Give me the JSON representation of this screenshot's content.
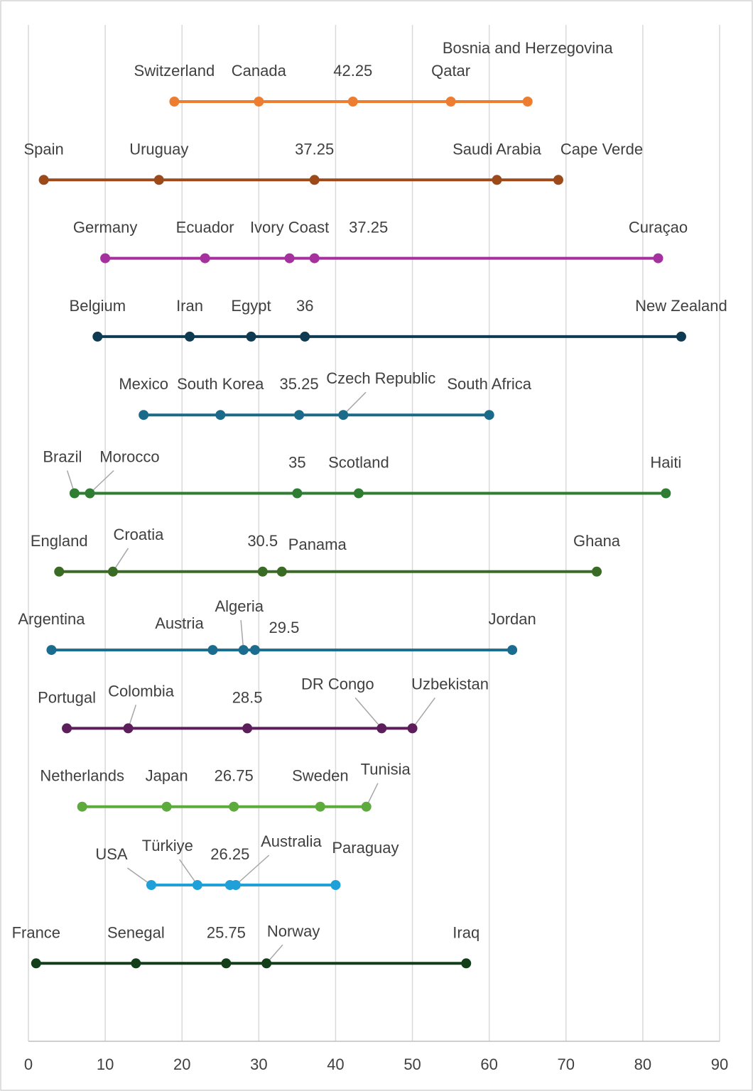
{
  "chart_data": {
    "type": "dot",
    "xlim": [
      0,
      90
    ],
    "xticks": [
      0,
      10,
      20,
      30,
      40,
      50,
      60,
      70,
      80,
      90
    ],
    "grid": true,
    "series": [
      {
        "color": "#ED7D31",
        "labels": [
          "Switzerland",
          "Canada",
          "Qatar",
          "Bosnia and Herzegovina"
        ],
        "values": [
          19,
          30,
          55,
          65
        ],
        "mean": 42.25
      },
      {
        "color": "#9C4A1A",
        "labels": [
          "Spain",
          "Uruguay",
          "Saudi Arabia",
          "Cape Verde"
        ],
        "values": [
          2,
          17,
          61,
          69
        ],
        "mean": 37.25
      },
      {
        "color": "#A5319E",
        "labels": [
          "Germany",
          "Ecuador",
          "Ivory Coast",
          "Curaçao"
        ],
        "values": [
          10,
          23,
          34,
          82
        ],
        "mean": 37.25
      },
      {
        "color": "#0E3A52",
        "labels": [
          "Belgium",
          "Iran",
          "Egypt",
          "New Zealand"
        ],
        "values": [
          9,
          21,
          29,
          85
        ],
        "mean": 36
      },
      {
        "color": "#1B6A8A",
        "labels": [
          "Mexico",
          "South Korea",
          "Czech Republic",
          "South Africa"
        ],
        "values": [
          15,
          25,
          41,
          60
        ],
        "mean": 35.25
      },
      {
        "color": "#2E7D32",
        "labels": [
          "Brazil",
          "Morocco",
          "Scotland",
          "Haiti"
        ],
        "values": [
          6,
          8,
          43,
          83
        ],
        "mean": 35
      },
      {
        "color": "#3A6B24",
        "labels": [
          "England",
          "Croatia",
          "Panama",
          "Ghana"
        ],
        "values": [
          4,
          11,
          33,
          74
        ],
        "mean": 30.5
      },
      {
        "color": "#1B6C8F",
        "labels": [
          "Argentina",
          "Austria",
          "Algeria",
          "Jordan"
        ],
        "values": [
          3,
          24,
          28,
          63
        ],
        "mean": 29.5
      },
      {
        "color": "#5C1F5C",
        "labels": [
          "Portugal",
          "Colombia",
          "DR Congo",
          "Uzbekistan"
        ],
        "values": [
          5,
          13,
          46,
          50
        ],
        "mean": 28.5
      },
      {
        "color": "#5CAB3C",
        "labels": [
          "Netherlands",
          "Japan",
          "Sweden",
          "Tunisia"
        ],
        "values": [
          7,
          18,
          38,
          44
        ],
        "mean": 26.75
      },
      {
        "color": "#1FA0D8",
        "labels": [
          "USA",
          "Türkiye",
          "Australia",
          "Paraguay"
        ],
        "values": [
          16,
          22,
          27,
          40
        ],
        "mean": 26.25
      },
      {
        "color": "#123F1A",
        "labels": [
          "France",
          "Senegal",
          "Norway",
          "Iraq"
        ],
        "values": [
          1,
          14,
          31,
          57
        ],
        "mean": 25.75
      }
    ]
  }
}
